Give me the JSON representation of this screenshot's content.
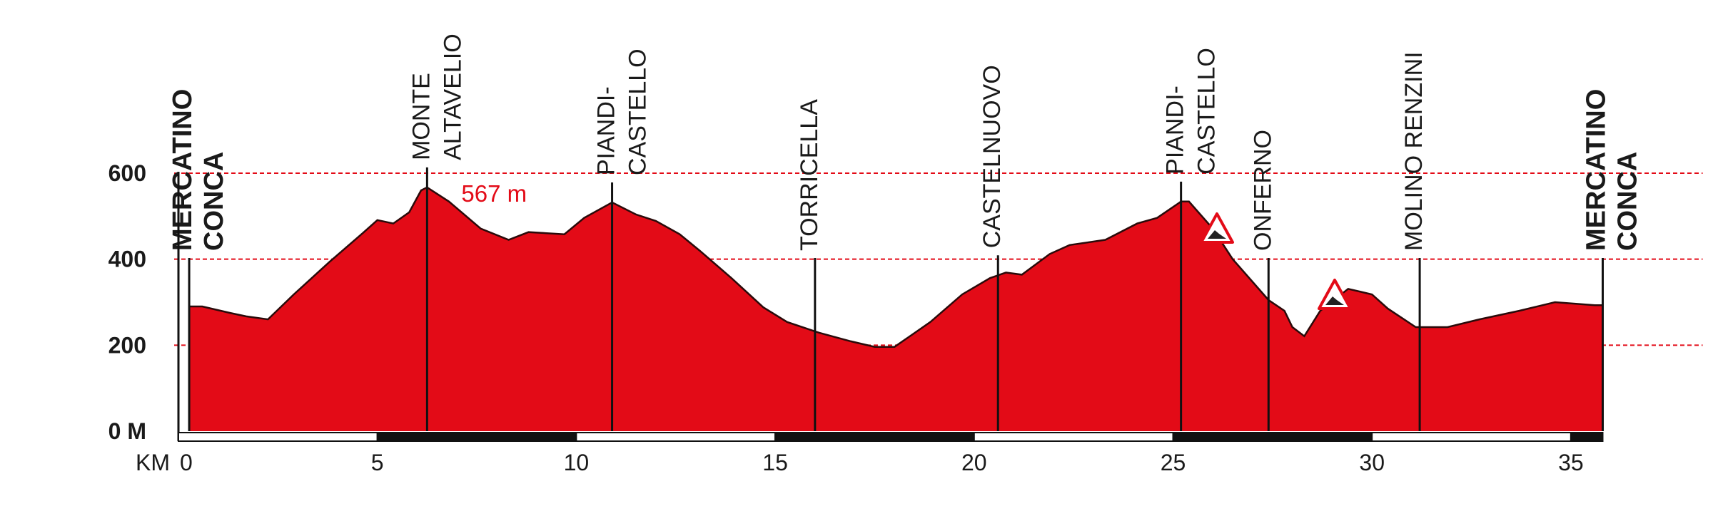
{
  "chart_data": {
    "type": "area",
    "color": "#e30b17",
    "xlabel": "KM",
    "x": [
      0.27,
      0.6,
      1.3,
      1.7,
      2.25,
      2.9,
      3.8,
      4.6,
      5.0,
      5.4,
      5.8,
      6.1,
      6.25,
      6.8,
      7.6,
      8.3,
      8.8,
      9.7,
      10.2,
      10.9,
      11.5,
      12.0,
      12.6,
      13.1,
      13.9,
      14.7,
      15.3,
      16.1,
      16.9,
      17.5,
      18.0,
      18.9,
      19.7,
      20.4,
      20.8,
      21.2,
      21.9,
      22.4,
      23.3,
      24.1,
      24.6,
      25.2,
      25.4,
      26.0,
      26.5,
      27.4,
      27.8,
      28.0,
      28.3,
      28.7,
      29.4,
      30.0,
      30.4,
      31.1,
      31.9,
      32.7,
      33.7,
      34.6,
      35.6,
      35.8
    ],
    "values": [
      290,
      290,
      275,
      267,
      260,
      318,
      394,
      458,
      491,
      483,
      509,
      560,
      567,
      534,
      471,
      445,
      463,
      458,
      496,
      532,
      504,
      489,
      458,
      420,
      356,
      288,
      254,
      229,
      209,
      196,
      196,
      254,
      318,
      356,
      369,
      364,
      412,
      433,
      445,
      483,
      496,
      534,
      534,
      471,
      400,
      305,
      280,
      242,
      221,
      280,
      331,
      318,
      285,
      242,
      242,
      260,
      280,
      300,
      293,
      293
    ],
    "xlim": [
      0,
      35.8
    ],
    "xticks": [
      0,
      5,
      10,
      15,
      20,
      25,
      30,
      35
    ],
    "ylim": [
      0,
      600
    ],
    "yticks": [
      {
        "value": 0,
        "label": "0 M"
      },
      200,
      400,
      600
    ],
    "grid": true,
    "annotations": [
      {
        "text": "567 m",
        "x": 6.25,
        "y": 567
      }
    ],
    "waypoints": [
      {
        "lines": [
          "MERCATINO",
          "CONCA"
        ],
        "km": 0.27,
        "bold": true
      },
      {
        "lines": [
          "MONTE",
          "ALTAVELIO"
        ],
        "km": 6.25
      },
      {
        "lines": [
          "PIANDI-",
          "CASTELLO"
        ],
        "km": 10.9
      },
      {
        "lines": [
          "TORRICELLA"
        ],
        "km": 16.0
      },
      {
        "lines": [
          "CASTELNUOVO"
        ],
        "km": 20.6
      },
      {
        "lines": [
          "PIANDI-",
          "CASTELLO"
        ],
        "km": 25.2
      },
      {
        "lines": [
          "ONFERNO"
        ],
        "km": 27.4
      },
      {
        "lines": [
          "MOLINO RENZINI"
        ],
        "km": 31.2
      },
      {
        "lines": [
          "MERCATINO",
          "CONCA"
        ],
        "km": 35.8,
        "bold": true
      }
    ]
  }
}
